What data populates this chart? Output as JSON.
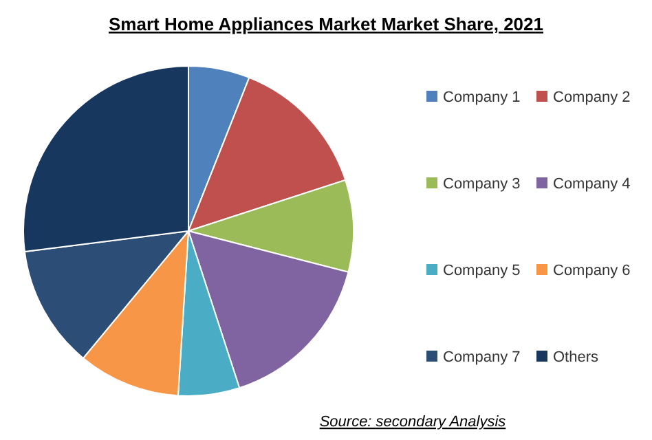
{
  "chart_data": {
    "type": "pie",
    "title": "Smart Home Appliances Market Market Share, 2021",
    "categories": [
      "Company 1",
      "Company 2",
      "Company 3",
      "Company 4",
      "Company 5",
      "Company 6",
      "Company 7",
      "Others"
    ],
    "values": [
      6,
      14,
      9,
      16,
      6,
      10,
      12,
      27
    ],
    "colors": [
      "#4f81bd",
      "#c0504d",
      "#9bbb59",
      "#8064a2",
      "#4bacc6",
      "#f79646",
      "#2c4d75",
      "#17375e"
    ],
    "legend": "right",
    "annotations": [
      "Source: secondary Analysis"
    ]
  }
}
